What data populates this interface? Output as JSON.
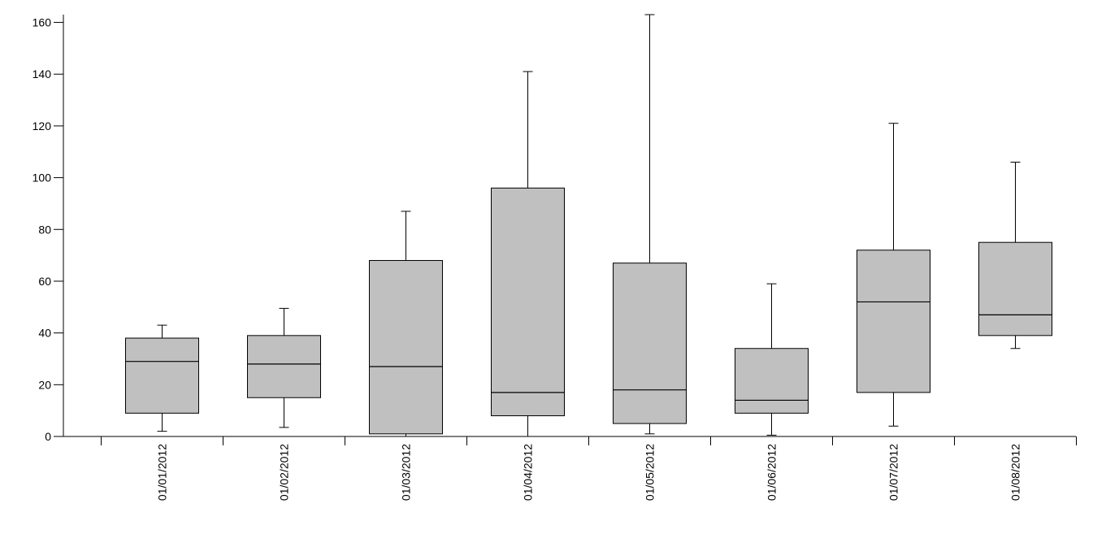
{
  "chart_data": {
    "type": "boxplot",
    "title": "",
    "xlabel": "",
    "ylabel": "",
    "ylim": [
      0,
      163
    ],
    "yticks": [
      0,
      20,
      40,
      60,
      80,
      100,
      120,
      140,
      160
    ],
    "grid": false,
    "legend": "none",
    "box_fill": "#c0c0c0",
    "line_color": "#000000",
    "categories": [
      "01/01/2012",
      "01/02/2012",
      "01/03/2012",
      "01/04/2012",
      "01/05/2012",
      "01/06/2012",
      "01/07/2012",
      "01/08/2012"
    ],
    "boxes": [
      {
        "whisker_low": 2,
        "q1": 9,
        "median": 29,
        "q3": 38,
        "whisker_high": 43
      },
      {
        "whisker_low": 3.5,
        "q1": 15,
        "median": 28,
        "q3": 39,
        "whisker_high": 49.5
      },
      {
        "whisker_low": 0,
        "q1": 1,
        "median": 27,
        "q3": 68,
        "whisker_high": 87
      },
      {
        "whisker_low": 0,
        "q1": 8,
        "median": 17,
        "q3": 96,
        "whisker_high": 141
      },
      {
        "whisker_low": 1,
        "q1": 5,
        "median": 18,
        "q3": 67,
        "whisker_high": 163
      },
      {
        "whisker_low": 0.5,
        "q1": 9,
        "median": 14,
        "q3": 34,
        "whisker_high": 59
      },
      {
        "whisker_low": 4,
        "q1": 17,
        "median": 52,
        "q3": 72,
        "whisker_high": 121
      },
      {
        "whisker_low": 34,
        "q1": 39,
        "median": 47,
        "q3": 75,
        "whisker_high": 106
      }
    ]
  }
}
